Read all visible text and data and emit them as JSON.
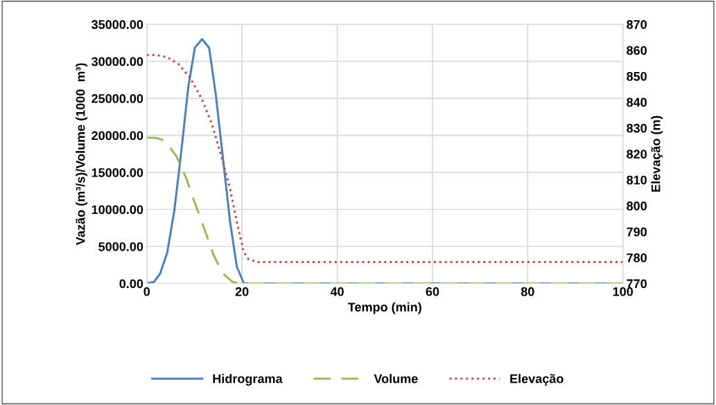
{
  "chart_data": {
    "type": "line",
    "xlabel": "Tempo (min)",
    "ylabel": "Vazão (m³/s)/Volume (1000  m³)",
    "y2label": "Elevação (m)",
    "xlim": [
      0,
      100
    ],
    "xticks": [
      0,
      20,
      40,
      60,
      80,
      100
    ],
    "ylim": [
      0,
      35000
    ],
    "yticks": [
      {
        "value": 0,
        "label": "0.00"
      },
      {
        "value": 5000,
        "label": "5000.00"
      },
      {
        "value": 10000,
        "label": "10000.00"
      },
      {
        "value": 15000,
        "label": "15000.00"
      },
      {
        "value": 20000,
        "label": "20000.00"
      },
      {
        "value": 25000,
        "label": "25000.00"
      },
      {
        "value": 30000,
        "label": "30000.00"
      },
      {
        "value": 35000,
        "label": "35000.00"
      }
    ],
    "y2lim": [
      770,
      870
    ],
    "y2ticks": [
      770,
      780,
      790,
      800,
      810,
      820,
      830,
      840,
      850,
      860,
      870
    ],
    "grid": true,
    "legend": "bottom",
    "series": [
      {
        "name": "Hidrograma",
        "color": "#4f81bd",
        "line_style": "solid",
        "x": [
          0,
          1.5,
          2.8,
          4.3,
          5.8,
          7.2,
          8.7,
          10.1,
          11.6,
          13.1,
          14.5,
          16,
          17.5,
          18.9,
          20.4,
          22,
          40,
          60,
          80,
          100
        ],
        "values": [
          0,
          200,
          1330,
          4190,
          9910,
          17540,
          26430,
          31830,
          33000,
          31830,
          25480,
          16900,
          8320,
          2290,
          0,
          0,
          0,
          0,
          0,
          0
        ]
      },
      {
        "name": "Volume",
        "color": "#9bbb59",
        "line_style": "dashed",
        "x": [
          0,
          2,
          3.8,
          6.2,
          8.2,
          10.1,
          12.1,
          14,
          16,
          18,
          19.9,
          40,
          60,
          80,
          100
        ],
        "values": [
          19700,
          19650,
          19280,
          17220,
          14360,
          10860,
          7370,
          3880,
          1330,
          220,
          0,
          0,
          0,
          0,
          0
        ]
      },
      {
        "name": "Elevação",
        "color": "#c0504d",
        "line_style": "dotted",
        "axis": "y2",
        "x": [
          0,
          2,
          4.3,
          6.7,
          9.2,
          11.6,
          13.6,
          15.5,
          17.5,
          18.9,
          20.4,
          21.4,
          23.3,
          40,
          60,
          80,
          100
        ],
        "values": [
          858.2,
          858.1,
          857.3,
          854.6,
          849.1,
          841,
          831.9,
          820.1,
          806.5,
          793.8,
          782,
          779.3,
          778.3,
          778.3,
          778.3,
          778.3,
          778.3
        ]
      }
    ]
  }
}
